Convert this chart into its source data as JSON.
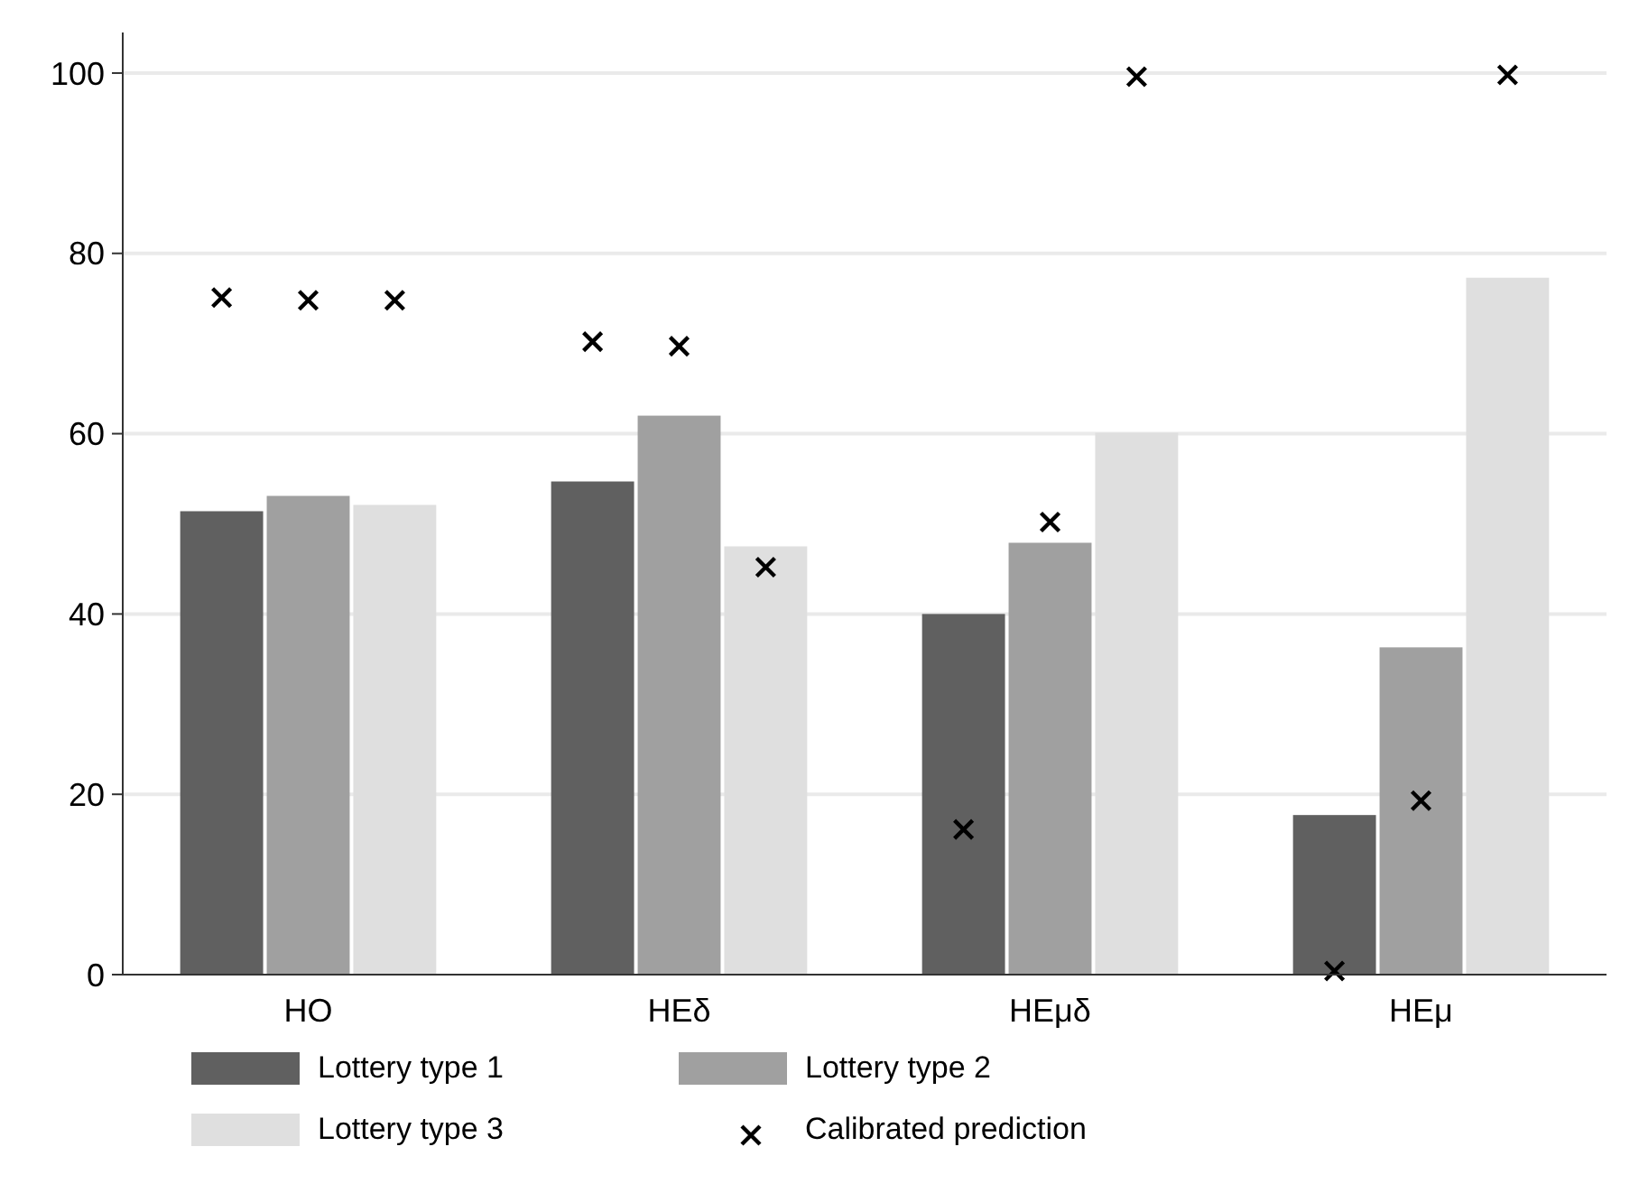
{
  "chart_data": {
    "type": "bar",
    "categories": [
      "HO",
      "HEδ",
      "HEμδ",
      "HEμ"
    ],
    "series": [
      {
        "name": "Lottery type 1",
        "color": "#606060",
        "values": [
          51.4,
          54.7,
          40.0,
          17.7
        ]
      },
      {
        "name": "Lottery type 2",
        "color": "#a0a0a0",
        "values": [
          53.1,
          62.0,
          47.9,
          36.3
        ]
      },
      {
        "name": "Lottery type 3",
        "color": "#dfdfdf",
        "values": [
          52.1,
          47.5,
          60.1,
          77.3
        ]
      },
      {
        "name": "Calibrated prediction",
        "type": "scatter",
        "marker": "cross",
        "color": "#000000",
        "x": [
          "HO",
          "HO",
          "HO",
          "HEδ",
          "HEδ",
          "HEδ",
          "HEμδ",
          "HEμδ",
          "HEμδ",
          "HEμ",
          "HEμ",
          "HEμ"
        ],
        "values": [
          75.1,
          74.8,
          74.8,
          70.2,
          69.7,
          45.2,
          16.1,
          50.2,
          99.6,
          0.4,
          19.3,
          99.8
        ]
      }
    ],
    "ylim": [
      0,
      104.5
    ],
    "yticks": [
      0,
      20,
      40,
      60,
      80,
      100
    ],
    "grid": "y",
    "legend": "bottom"
  }
}
